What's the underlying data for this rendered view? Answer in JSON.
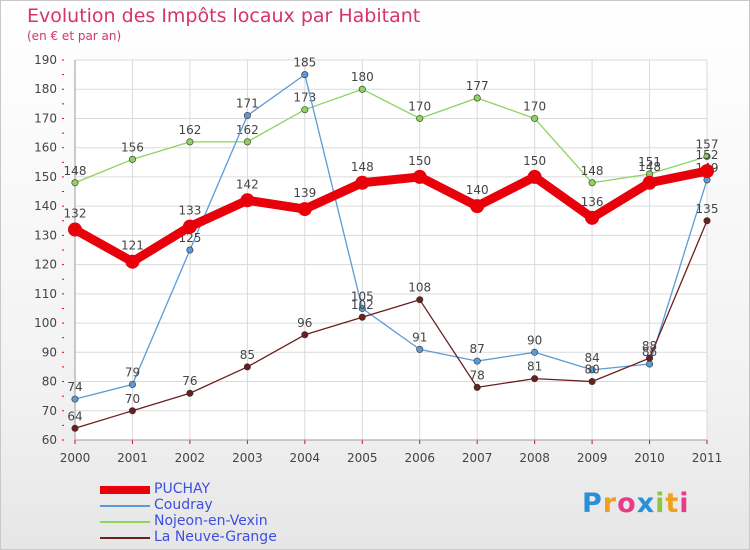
{
  "chart_data": {
    "type": "line",
    "title": "Evolution des Impôts locaux par Habitant",
    "subtitle": "(en € et par an)",
    "x": [
      "2000",
      "2001",
      "2002",
      "2003",
      "2004",
      "2005",
      "2006",
      "2007",
      "2008",
      "2009",
      "2010",
      "2011"
    ],
    "ylim": [
      60,
      190
    ],
    "yticks": [
      60,
      70,
      80,
      90,
      100,
      110,
      120,
      130,
      140,
      150,
      160,
      170,
      180,
      190
    ],
    "grid": true,
    "legend_position": "bottom-left",
    "series": [
      {
        "name": "Nojeon-en-Vexin",
        "color": "#8dd35f",
        "values": [
          148,
          156,
          162,
          162,
          173,
          180,
          170,
          177,
          170,
          148,
          151,
          157
        ],
        "labels": [
          "148",
          "156",
          "162",
          "162",
          "173",
          "180",
          "170",
          "177",
          "170",
          "148",
          "151",
          "157"
        ]
      },
      {
        "name": "Coudray",
        "color": "#5b9bd5",
        "values": [
          74,
          79,
          125,
          171,
          185,
          105,
          91,
          87,
          90,
          84,
          86,
          149
        ],
        "labels": [
          "74",
          "79",
          "125",
          "171",
          "185",
          "105",
          "91",
          "87",
          "90",
          "84",
          "86",
          "149"
        ]
      },
      {
        "name": "La Neuve-Grange",
        "color": "#6b1f1f",
        "values": [
          64,
          70,
          76,
          85,
          96,
          102,
          108,
          78,
          81,
          80,
          88,
          135
        ],
        "labels": [
          "64",
          "70",
          "76",
          "85",
          "96",
          "102",
          "108",
          "78",
          "81",
          "80",
          "88",
          "135"
        ]
      },
      {
        "name": "PUCHAY",
        "color": "#e8000b",
        "values": [
          132,
          121,
          133,
          142,
          139,
          148,
          150,
          140,
          150,
          136,
          148,
          152
        ],
        "labels": [
          "132",
          "121",
          "133",
          "142",
          "139",
          "148",
          "150",
          "140",
          "150",
          "136",
          "148",
          "152"
        ]
      }
    ]
  },
  "legend": {
    "items": [
      {
        "label": "PUCHAY",
        "color": "#e8000b"
      },
      {
        "label": "Coudray",
        "color": "#5b9bd5"
      },
      {
        "label": "Nojeon-en-Vexin",
        "color": "#8dd35f"
      },
      {
        "label": "La Neuve-Grange",
        "color": "#6b1f1f"
      }
    ]
  },
  "logo": {
    "letters": [
      "P",
      "r",
      "o",
      "x",
      "i",
      "t",
      "i"
    ],
    "colors": [
      "#2a8fd6",
      "#f0a020",
      "#e83c8a",
      "#2a8fd6",
      "#8dc63f",
      "#f0a020",
      "#e83c8a"
    ]
  }
}
